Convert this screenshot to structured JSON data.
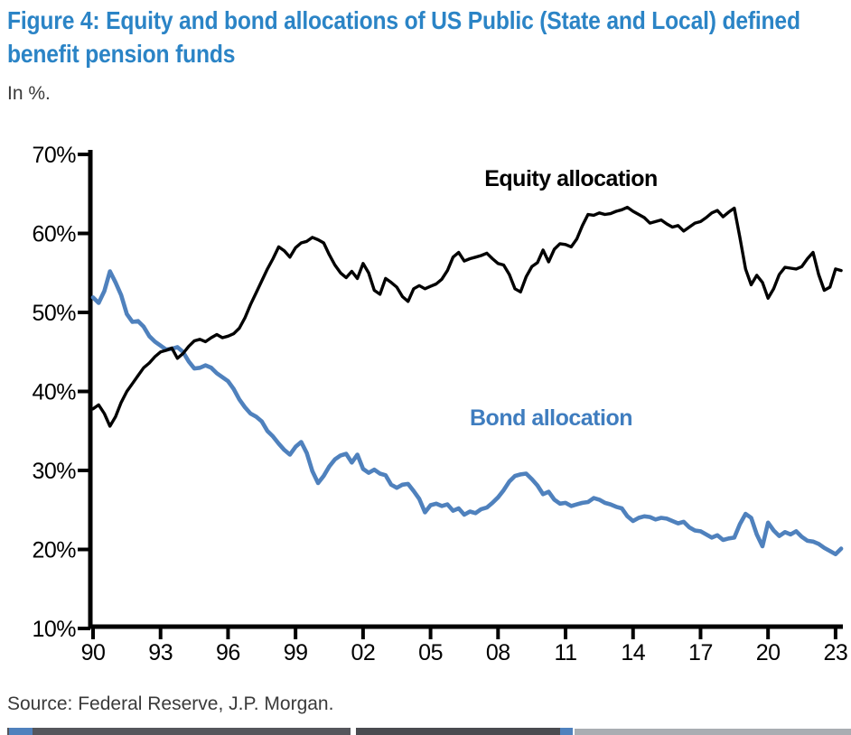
{
  "header": {
    "title": "Figure 4: Equity and bond allocations of US Public (State and Local) defined benefit pension funds",
    "subtitle": "In %."
  },
  "footer": {
    "source": "Source: Federal Reserve, J.P. Morgan."
  },
  "colors": {
    "title_blue": "#2b84c6",
    "bond_blue": "#4f81bd",
    "bond_label_blue": "#3f7dbf",
    "equity_black": "#000000",
    "text_dark": "#3a3a3a",
    "axis_black": "#000000"
  },
  "chart_data": {
    "type": "line",
    "title": "Figure 4: Equity and bond allocations of US Public (State and Local) defined benefit pension funds",
    "xlabel": "",
    "ylabel": "In %.",
    "grid": false,
    "legend_position": "inline-annotations",
    "xlim": [
      1990,
      2023.25
    ],
    "ylim": [
      10,
      70
    ],
    "x_unit": "year",
    "x_frequency": "quarterly",
    "x_start": 1990.0,
    "x_step": 0.25,
    "x_tick_values": [
      1990,
      1993,
      1996,
      1999,
      2002,
      2005,
      2008,
      2011,
      2014,
      2017,
      2020,
      2023
    ],
    "x_tick_labels": [
      "90",
      "93",
      "96",
      "99",
      "02",
      "05",
      "08",
      "11",
      "14",
      "17",
      "20",
      "23"
    ],
    "y_tick_values": [
      70,
      60,
      50,
      40,
      30,
      20,
      10
    ],
    "y_tick_labels": [
      "70%",
      "60%",
      "50%",
      "40%",
      "30%",
      "20%",
      "10%"
    ],
    "series": [
      {
        "name": "Equity allocation",
        "color": "#000000",
        "label_color": "#000000",
        "values": [
          37.8,
          38.3,
          37.2,
          35.6,
          36.8,
          38.6,
          40.0,
          41.0,
          42.0,
          43.0,
          43.6,
          44.4,
          45.0,
          45.2,
          45.5,
          44.2,
          44.8,
          45.7,
          46.4,
          46.6,
          46.3,
          46.8,
          47.2,
          46.8,
          47.0,
          47.3,
          48.0,
          49.3,
          51.0,
          52.5,
          54.0,
          55.5,
          56.8,
          58.3,
          57.8,
          57.0,
          58.2,
          58.8,
          59.0,
          59.5,
          59.2,
          58.8,
          57.3,
          56.0,
          55.0,
          54.4,
          55.2,
          54.3,
          56.2,
          55.0,
          52.8,
          52.3,
          54.3,
          53.8,
          53.2,
          52.0,
          51.4,
          53.0,
          53.4,
          53.0,
          53.3,
          53.6,
          54.2,
          55.3,
          57.0,
          57.6,
          56.5,
          56.8,
          57.0,
          57.2,
          57.5,
          56.8,
          56.2,
          56.0,
          54.8,
          53.0,
          52.6,
          54.5,
          55.8,
          56.3,
          57.9,
          56.4,
          58.0,
          58.7,
          58.6,
          58.3,
          59.3,
          61.0,
          62.4,
          62.3,
          62.6,
          62.4,
          62.5,
          62.8,
          63.0,
          63.3,
          62.8,
          62.4,
          62.0,
          61.3,
          61.5,
          61.7,
          61.2,
          60.8,
          61.0,
          60.3,
          60.8,
          61.3,
          61.5,
          62.0,
          62.6,
          62.9,
          62.1,
          62.7,
          63.2,
          59.5,
          55.5,
          53.5,
          54.7,
          53.8,
          51.8,
          53.0,
          54.8,
          55.7,
          55.6,
          55.5,
          55.8,
          56.8,
          57.6,
          54.8,
          52.8,
          53.2,
          55.5,
          55.3
        ]
      },
      {
        "name": "Bond allocation",
        "color": "#4f81bd",
        "label_color": "#3f7dbf",
        "values": [
          51.9,
          51.2,
          52.7,
          55.2,
          53.8,
          52.2,
          49.8,
          48.8,
          48.9,
          48.2,
          47.0,
          46.3,
          45.8,
          45.3,
          45.4,
          45.6,
          45.0,
          43.8,
          42.9,
          43.0,
          43.3,
          43.0,
          42.3,
          41.8,
          41.3,
          40.3,
          39.0,
          38.0,
          37.2,
          36.8,
          36.2,
          35.0,
          34.3,
          33.4,
          32.6,
          32.0,
          33.0,
          33.6,
          32.2,
          29.9,
          28.4,
          29.3,
          30.5,
          31.4,
          31.9,
          32.1,
          31.0,
          32.0,
          30.2,
          29.7,
          30.1,
          29.6,
          29.4,
          28.2,
          27.8,
          28.2,
          28.3,
          27.4,
          26.4,
          24.7,
          25.6,
          25.8,
          25.5,
          25.7,
          24.9,
          25.2,
          24.4,
          24.8,
          24.6,
          25.1,
          25.3,
          25.9,
          26.6,
          27.5,
          28.6,
          29.3,
          29.5,
          29.6,
          28.9,
          28.1,
          27.0,
          27.3,
          26.3,
          25.8,
          25.9,
          25.5,
          25.7,
          25.9,
          26.0,
          26.5,
          26.3,
          25.9,
          25.7,
          25.4,
          25.2,
          24.2,
          23.6,
          24.0,
          24.2,
          24.1,
          23.8,
          24.0,
          23.9,
          23.6,
          23.3,
          23.5,
          22.8,
          22.4,
          22.3,
          21.9,
          21.5,
          21.8,
          21.2,
          21.4,
          21.5,
          23.2,
          24.5,
          24.0,
          21.9,
          20.4,
          23.4,
          22.4,
          21.7,
          22.2,
          21.9,
          22.3,
          21.6,
          21.1,
          21.0,
          20.7,
          20.2,
          19.8,
          19.4,
          20.1
        ]
      }
    ]
  }
}
